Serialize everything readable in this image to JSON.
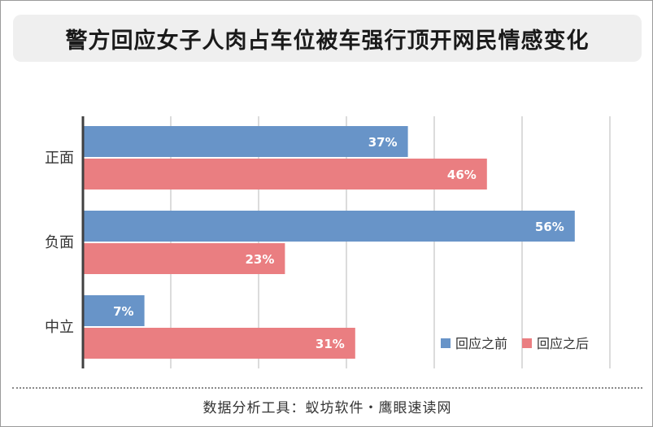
{
  "title": "警方回应女子人肉占车位被车强行顶开网民情感变化",
  "footer": "数据分析工具：蚁坊软件・鹰眼速读网",
  "colors": {
    "before": "#6894c8",
    "after": "#ea7e81"
  },
  "chart_data": {
    "type": "bar",
    "orientation": "horizontal",
    "categories": [
      "正面",
      "负面",
      "中立"
    ],
    "series": [
      {
        "name": "回应之前",
        "values": [
          37,
          56,
          7
        ],
        "labels": [
          "37%",
          "56%",
          "7%"
        ]
      },
      {
        "name": "回应之后",
        "values": [
          46,
          23,
          31
        ],
        "labels": [
          "46%",
          "23%",
          "31%"
        ]
      }
    ],
    "xlim": [
      0,
      60
    ],
    "grid": true,
    "legend_position": "bottom-right",
    "title": "警方回应女子人肉占车位被车强行顶开网民情感变化",
    "xlabel": "",
    "ylabel": ""
  }
}
